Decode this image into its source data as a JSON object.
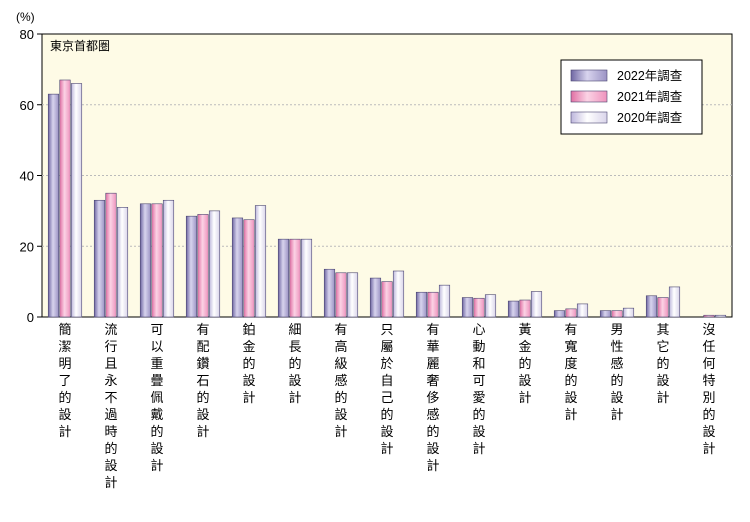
{
  "chart_data": {
    "type": "bar",
    "region_label": "東京首都圏",
    "unit_label": "(%)",
    "ylim": [
      0,
      80
    ],
    "yticks": [
      0,
      20,
      40,
      60,
      80
    ],
    "grid": true,
    "legend_position": "top-right",
    "categories": [
      "簡潔明了的設計",
      "流行且永不過時的設計",
      "可以重疊佩戴的設計",
      "有配鑽石的設計",
      "鉑金的設計",
      "細長的設計",
      "有高級感的設計",
      "只屬於自己的設計",
      "有華麗奢侈感的設計",
      "心動和可愛的設計",
      "黃金的設計",
      "有寬度的設計",
      "男性感的設計",
      "其它的設計",
      "沒任何特別的設計"
    ],
    "series": [
      {
        "name": "2022年調查",
        "color": "#9b93c4",
        "values": [
          63,
          33,
          32,
          28.5,
          28,
          22,
          13.5,
          11,
          7,
          5.5,
          4.5,
          1.8,
          1.8,
          6,
          0
        ]
      },
      {
        "name": "2021年調查",
        "color": "#ee93bd",
        "values": [
          67,
          35,
          32,
          29,
          27.5,
          22,
          12.5,
          10,
          7,
          5.3,
          4.8,
          2.3,
          1.8,
          5.5,
          0.5
        ]
      },
      {
        "name": "2020年調查",
        "color": "#d9d4ea",
        "values": [
          66,
          31,
          33,
          30,
          31.5,
          22,
          12.5,
          13,
          9,
          6.3,
          7.2,
          3.7,
          2.5,
          8.5,
          0.5
        ]
      }
    ]
  }
}
